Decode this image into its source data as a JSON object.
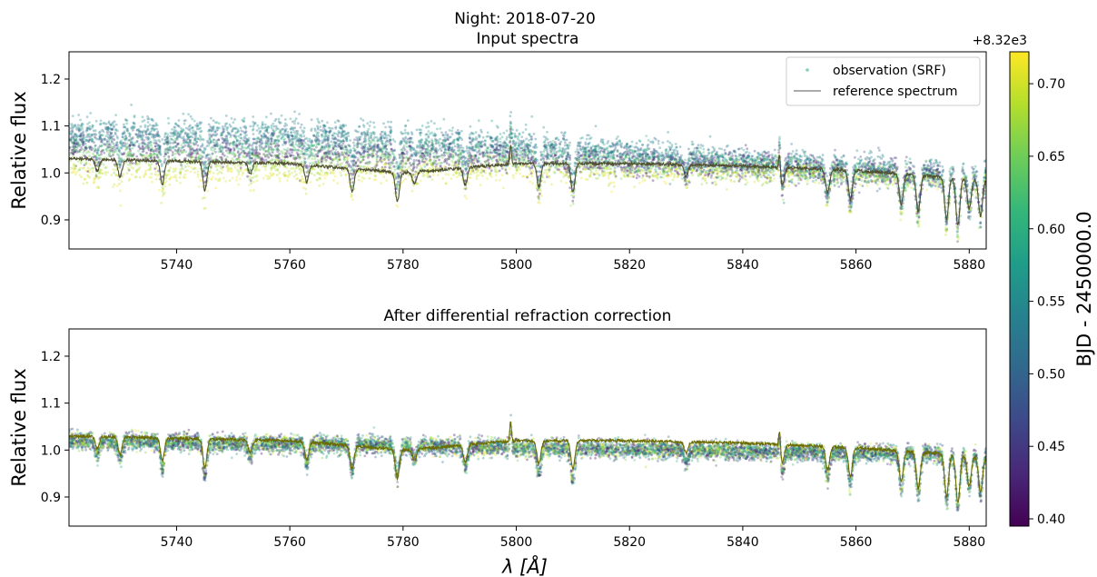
{
  "suptitle": "Night: 2018-07-20",
  "chart_data": [
    {
      "type": "scatter",
      "title": "Input spectra",
      "xlabel": "",
      "ylabel": "Relative flux",
      "xlim": [
        5721,
        5883
      ],
      "ylim": [
        0.838,
        1.258
      ],
      "xticks": [
        5740,
        5760,
        5780,
        5800,
        5820,
        5840,
        5860,
        5880
      ],
      "yticks": [
        0.9,
        1.0,
        1.1,
        1.2
      ],
      "grid": false,
      "legend": {
        "placement": "top-right",
        "entries": [
          {
            "label": "observation (SRF)",
            "marker": "dot"
          },
          {
            "label": "reference spectrum",
            "marker": "line"
          }
        ]
      },
      "series": [
        {
          "name": "observation (SRF)",
          "color_by": "BJD - 2450000.0",
          "envelope_by_time": [
            {
              "bjd": 8320.4,
              "x": [
                5721,
                5800,
                5850,
                5883
              ],
              "y_center": [
                1.04,
                1.02,
                1.01,
                0.99
              ],
              "spread": 0.03
            },
            {
              "bjd": 8320.55,
              "x": [
                5721,
                5760,
                5800,
                5840,
                5850,
                5883
              ],
              "y_center": [
                1.1,
                1.1,
                1.07,
                1.03,
                1.02,
                1.0
              ],
              "spread": 0.035
            },
            {
              "bjd": 8320.62,
              "x": [
                5721,
                5800,
                5850,
                5883
              ],
              "y_center": [
                1.06,
                1.04,
                1.01,
                0.99
              ],
              "spread": 0.03
            },
            {
              "bjd": 8320.7,
              "x": [
                5721,
                5800,
                5850,
                5883
              ],
              "y_center": [
                1.0,
                1.0,
                1.0,
                0.98
              ],
              "spread": 0.025
            }
          ]
        },
        {
          "name": "reference spectrum",
          "color": "#555555",
          "continuum": {
            "x": [
              5721,
              5760,
              5780,
              5800,
              5820,
              5840,
              5860,
              5883
            ],
            "y": [
              1.03,
              1.02,
              1.0,
              1.02,
              1.02,
              1.015,
              1.005,
              0.985
            ]
          }
        }
      ]
    },
    {
      "type": "scatter",
      "title": "After differential refraction correction",
      "xlabel": "λ [Å]",
      "ylabel": "Relative flux",
      "xlim": [
        5721,
        5883
      ],
      "ylim": [
        0.838,
        1.258
      ],
      "xticks": [
        5740,
        5760,
        5780,
        5800,
        5820,
        5840,
        5860,
        5880
      ],
      "yticks": [
        0.9,
        1.0,
        1.1,
        1.2
      ],
      "grid": false,
      "series": [
        {
          "name": "observation (SRF)",
          "color_by": "BJD - 2450000.0",
          "envelope_by_time": [
            {
              "bjd": 8320.4,
              "x": [
                5721,
                5883
              ],
              "y_center": [
                1.02,
                0.99
              ],
              "spread": 0.02
            },
            {
              "bjd": 8320.7,
              "x": [
                5721,
                5883
              ],
              "y_center": [
                1.02,
                0.99
              ],
              "spread": 0.02
            }
          ]
        },
        {
          "name": "reference spectrum",
          "color": "#6b6b00",
          "continuum": {
            "x": [
              5721,
              5760,
              5780,
              5800,
              5820,
              5840,
              5860,
              5883
            ],
            "y": [
              1.03,
              1.02,
              1.0,
              1.02,
              1.02,
              1.015,
              1.005,
              0.985
            ]
          }
        }
      ]
    }
  ],
  "colorbar": {
    "label": "BJD - 2450000.0",
    "offset_text": "+8.32e3",
    "range": [
      0.395,
      0.722
    ],
    "ticks": [
      0.4,
      0.45,
      0.5,
      0.55,
      0.6,
      0.65,
      0.7
    ],
    "tick_labels": [
      "0.40",
      "0.45",
      "0.50",
      "0.55",
      "0.60",
      "0.65",
      "0.70"
    ],
    "colormap": "viridis"
  },
  "absorption_lines": [
    5726,
    5730,
    5737.5,
    5745,
    5753,
    5763,
    5771,
    5779,
    5782,
    5791,
    5804,
    5810,
    5830,
    5847,
    5855,
    5859,
    5868,
    5871,
    5876,
    5878,
    5880,
    5882
  ],
  "spikes": [
    5799,
    5846.5
  ],
  "colors": {
    "axis": "#000000",
    "reference_top": "#505030",
    "reference_bottom": "#6b6b00"
  }
}
